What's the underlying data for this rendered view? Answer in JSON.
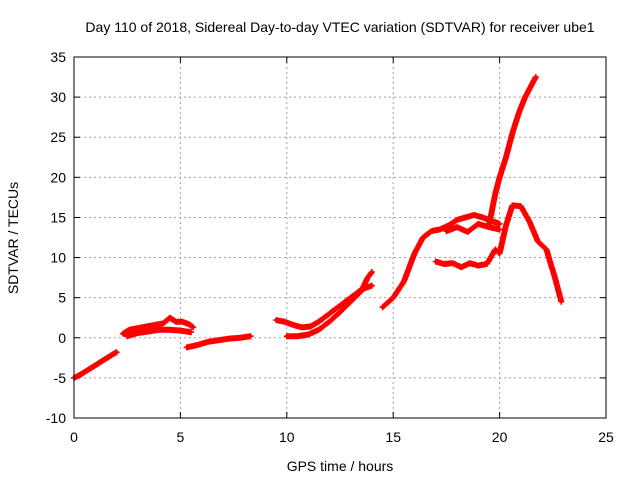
{
  "chart_data": {
    "type": "scatter",
    "title": "Day 110 of 2018, Sidereal Day-to-day VTEC variation (SDTVAR) for receiver ube1",
    "xlabel": "GPS time / hours",
    "ylabel": "SDTVAR / TECUs",
    "xlim": [
      0,
      25
    ],
    "ylim": [
      -10,
      35
    ],
    "xticks": [
      0,
      5,
      10,
      15,
      20,
      25
    ],
    "yticks": [
      -10,
      -5,
      0,
      5,
      10,
      15,
      20,
      25,
      30,
      35
    ],
    "grid": true,
    "marker": "+",
    "color": "#ff0000",
    "series": [
      {
        "name": "arc1",
        "x": [
          0.0,
          0.3,
          0.6,
          0.9,
          1.2,
          1.5,
          1.8,
          2.0
        ],
        "y": [
          -5.0,
          -4.6,
          -4.1,
          -3.6,
          -3.1,
          -2.6,
          -2.1,
          -1.8
        ]
      },
      {
        "name": "arc2",
        "x": [
          2.3,
          2.6,
          3.0,
          3.4,
          3.8,
          4.2,
          4.5,
          4.8,
          5.1,
          5.4,
          5.6
        ],
        "y": [
          0.5,
          1.0,
          1.2,
          1.4,
          1.6,
          1.8,
          2.5,
          2.0,
          2.0,
          1.7,
          1.3
        ]
      },
      {
        "name": "arc3",
        "x": [
          2.5,
          3.0,
          3.5,
          4.0,
          4.5,
          5.0,
          5.5
        ],
        "y": [
          0.2,
          0.6,
          0.8,
          1.0,
          1.0,
          0.9,
          0.7
        ]
      },
      {
        "name": "arc4",
        "x": [
          5.3,
          5.8,
          6.3,
          6.8,
          7.3,
          7.8,
          8.3
        ],
        "y": [
          -1.2,
          -0.9,
          -0.5,
          -0.3,
          -0.1,
          0.0,
          0.2
        ]
      },
      {
        "name": "arc5",
        "x": [
          9.5,
          9.9,
          10.3,
          10.7,
          11.1,
          11.5,
          12.0,
          12.5,
          13.0,
          13.5,
          14.0
        ],
        "y": [
          2.2,
          2.0,
          1.6,
          1.3,
          1.4,
          2.0,
          3.0,
          4.0,
          5.0,
          6.0,
          6.5
        ]
      },
      {
        "name": "arc6",
        "x": [
          10.0,
          10.5,
          11.0,
          11.5,
          12.0,
          12.5,
          13.0,
          13.5,
          13.8,
          14.0
        ],
        "y": [
          0.2,
          0.2,
          0.4,
          1.0,
          2.0,
          3.2,
          4.5,
          5.8,
          7.5,
          8.2
        ]
      },
      {
        "name": "arc7",
        "x": [
          14.5,
          15.0,
          15.5,
          16.0,
          16.4,
          16.8,
          17.2,
          17.6,
          18.0,
          18.4,
          18.8,
          19.2,
          19.6,
          20.0
        ],
        "y": [
          3.8,
          5.0,
          7.0,
          10.5,
          12.5,
          13.3,
          13.5,
          14.0,
          14.7,
          15.0,
          15.3,
          15.0,
          14.6,
          14.2
        ]
      },
      {
        "name": "arc8",
        "x": [
          17.5,
          18.0,
          18.5,
          19.0,
          19.5,
          20.0
        ],
        "y": [
          13.3,
          13.8,
          13.2,
          14.2,
          13.8,
          13.5
        ]
      },
      {
        "name": "arc9",
        "x": [
          17.0,
          17.4,
          17.8,
          18.2,
          18.6,
          19.0,
          19.4,
          19.8,
          20.0,
          20.3,
          20.6,
          21.0,
          21.4,
          21.8,
          22.2,
          22.6,
          22.9
        ],
        "y": [
          9.5,
          9.2,
          9.3,
          8.8,
          9.3,
          9.0,
          9.2,
          11.0,
          10.5,
          14.0,
          16.5,
          16.4,
          14.5,
          12.0,
          11.0,
          7.5,
          4.5
        ]
      },
      {
        "name": "arc10",
        "x": [
          19.5,
          19.8,
          20.0,
          20.3,
          20.6,
          20.9,
          21.2,
          21.5,
          21.7
        ],
        "y": [
          14.0,
          18.0,
          20.0,
          22.5,
          25.5,
          28.0,
          30.0,
          31.5,
          32.5
        ]
      }
    ]
  }
}
